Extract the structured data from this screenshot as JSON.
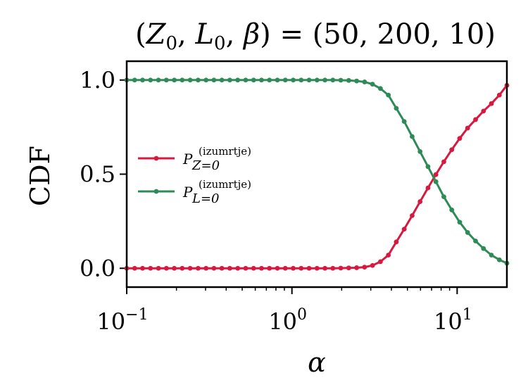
{
  "chart_data": {
    "type": "line",
    "title_parts": {
      "open": "(",
      "z": "Z",
      "z_sub": "0",
      "comma1": ", ",
      "l": "L",
      "l_sub": "0",
      "comma2": ", ",
      "beta": "β",
      "equals": ") = (50, 200, 10)"
    },
    "xlabel": "α",
    "ylabel": "CDF",
    "xscale": "log",
    "xlim": [
      0.1,
      20
    ],
    "ylim": [
      -0.1,
      1.1
    ],
    "xticks": [
      {
        "value": 0.1,
        "base": "10",
        "exp": "−1"
      },
      {
        "value": 1,
        "base": "10",
        "exp": "0"
      },
      {
        "value": 10,
        "base": "10",
        "exp": "1"
      }
    ],
    "yticks": [
      {
        "value": 0.0,
        "label": "0.0"
      },
      {
        "value": 0.5,
        "label": "0.5"
      },
      {
        "value": 1.0,
        "label": "1.0"
      }
    ],
    "grid": false,
    "legend_placement": "center-left",
    "x": [
      0.1,
      0.1117,
      0.1247,
      0.1393,
      0.1556,
      0.1738,
      0.1941,
      0.2167,
      0.2421,
      0.2704,
      0.302,
      0.3372,
      0.3766,
      0.4207,
      0.4698,
      0.5247,
      0.586,
      0.6544,
      0.7309,
      0.8163,
      0.9116,
      1.0181,
      1.1371,
      1.2699,
      1.4183,
      1.584,
      1.769,
      1.9756,
      2.2064,
      2.4642,
      2.7521,
      3.0736,
      3.4327,
      3.8337,
      4.2815,
      4.7817,
      5.3403,
      5.9642,
      6.661,
      7.4391,
      8.3081,
      9.2787,
      10.3627,
      11.5733,
      12.9253,
      14.4352,
      16.1215,
      18.0049,
      20.0
    ],
    "series": [
      {
        "name_base": "P",
        "name_sub": "Z=0",
        "name_sup": "(izumrtje)",
        "color": "#d7193f",
        "values": [
          0,
          0,
          0,
          0,
          0,
          0,
          0,
          0,
          0,
          0,
          0,
          0,
          0,
          0,
          0,
          0,
          0,
          0,
          0,
          0,
          0,
          0,
          0,
          0,
          0,
          0,
          0,
          0.001,
          0.002,
          0.003,
          0.006,
          0.015,
          0.035,
          0.07,
          0.14,
          0.208,
          0.28,
          0.354,
          0.427,
          0.498,
          0.566,
          0.63,
          0.69,
          0.745,
          0.79,
          0.835,
          0.875,
          0.92,
          0.972
        ]
      },
      {
        "name_base": "P",
        "name_sub": "L=0",
        "name_sup": "(izumrtje)",
        "color": "#2e8b57",
        "values": [
          1,
          1,
          1,
          1,
          1,
          1,
          1,
          1,
          1,
          1,
          1,
          1,
          1,
          1,
          1,
          1,
          1,
          1,
          1,
          1,
          1,
          1,
          1,
          1,
          1,
          1,
          1,
          0.999,
          0.998,
          0.995,
          0.99,
          0.978,
          0.955,
          0.92,
          0.85,
          0.78,
          0.7,
          0.62,
          0.54,
          0.46,
          0.38,
          0.31,
          0.245,
          0.19,
          0.145,
          0.105,
          0.07,
          0.045,
          0.027
        ]
      }
    ]
  }
}
